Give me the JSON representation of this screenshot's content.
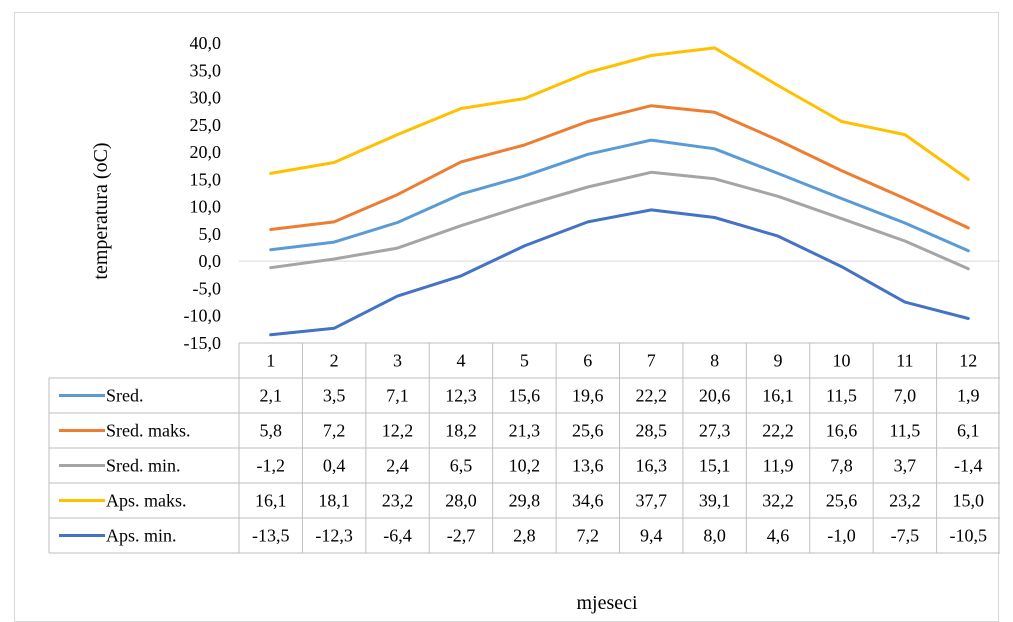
{
  "chart_data": {
    "type": "line",
    "title": "",
    "xlabel": "mjeseci",
    "ylabel": "temperatura (oC)",
    "ylim": [
      -15,
      40
    ],
    "ystep": 5,
    "ytick_labels": [
      "-15,0",
      "-10,0",
      "-5,0",
      "0,0",
      "5,0",
      "10,0",
      "15,0",
      "20,0",
      "25,0",
      "30,0",
      "35,0",
      "40,0"
    ],
    "categories": [
      "1",
      "2",
      "3",
      "4",
      "5",
      "6",
      "7",
      "8",
      "9",
      "10",
      "11",
      "12"
    ],
    "grid": false,
    "legend": "data-table",
    "series": [
      {
        "name": "Sred.",
        "color": "#5b9bd5",
        "values": [
          2.1,
          3.5,
          7.1,
          12.3,
          15.6,
          19.6,
          22.2,
          20.6,
          16.1,
          11.5,
          7.0,
          1.9
        ],
        "labels": [
          "2,1",
          "3,5",
          "7,1",
          "12,3",
          "15,6",
          "19,6",
          "22,2",
          "20,6",
          "16,1",
          "11,5",
          "7,0",
          "1,9"
        ]
      },
      {
        "name": "Sred. maks.",
        "color": "#ed7d31",
        "values": [
          5.8,
          7.2,
          12.2,
          18.2,
          21.3,
          25.6,
          28.5,
          27.3,
          22.2,
          16.6,
          11.5,
          6.1
        ],
        "labels": [
          "5,8",
          "7,2",
          "12,2",
          "18,2",
          "21,3",
          "25,6",
          "28,5",
          "27,3",
          "22,2",
          "16,6",
          "11,5",
          "6,1"
        ]
      },
      {
        "name": "Sred. min.",
        "color": "#a5a5a5",
        "values": [
          -1.2,
          0.4,
          2.4,
          6.5,
          10.2,
          13.6,
          16.3,
          15.1,
          11.9,
          7.8,
          3.7,
          -1.4
        ],
        "labels": [
          "-1,2",
          "0,4",
          "2,4",
          "6,5",
          "10,2",
          "13,6",
          "16,3",
          "15,1",
          "11,9",
          "7,8",
          "3,7",
          "-1,4"
        ]
      },
      {
        "name": "Aps. maks.",
        "color": "#ffc000",
        "values": [
          16.1,
          18.1,
          23.2,
          28.0,
          29.8,
          34.6,
          37.7,
          39.1,
          32.2,
          25.6,
          23.2,
          15.0
        ],
        "labels": [
          "16,1",
          "18,1",
          "23,2",
          "28,0",
          "29,8",
          "34,6",
          "37,7",
          "39,1",
          "32,2",
          "25,6",
          "23,2",
          "15,0"
        ]
      },
      {
        "name": "Aps. min.",
        "color": "#4472c4",
        "values": [
          -13.5,
          -12.3,
          -6.4,
          -2.7,
          2.8,
          7.2,
          9.4,
          8.0,
          4.6,
          -1.0,
          -7.5,
          -10.5
        ],
        "labels": [
          "-13,5",
          "-12,3",
          "-6,4",
          "-2,7",
          "2,8",
          "7,2",
          "9,4",
          "8,0",
          "4,6",
          "-1,0",
          "-7,5",
          "-10,5"
        ]
      }
    ]
  }
}
